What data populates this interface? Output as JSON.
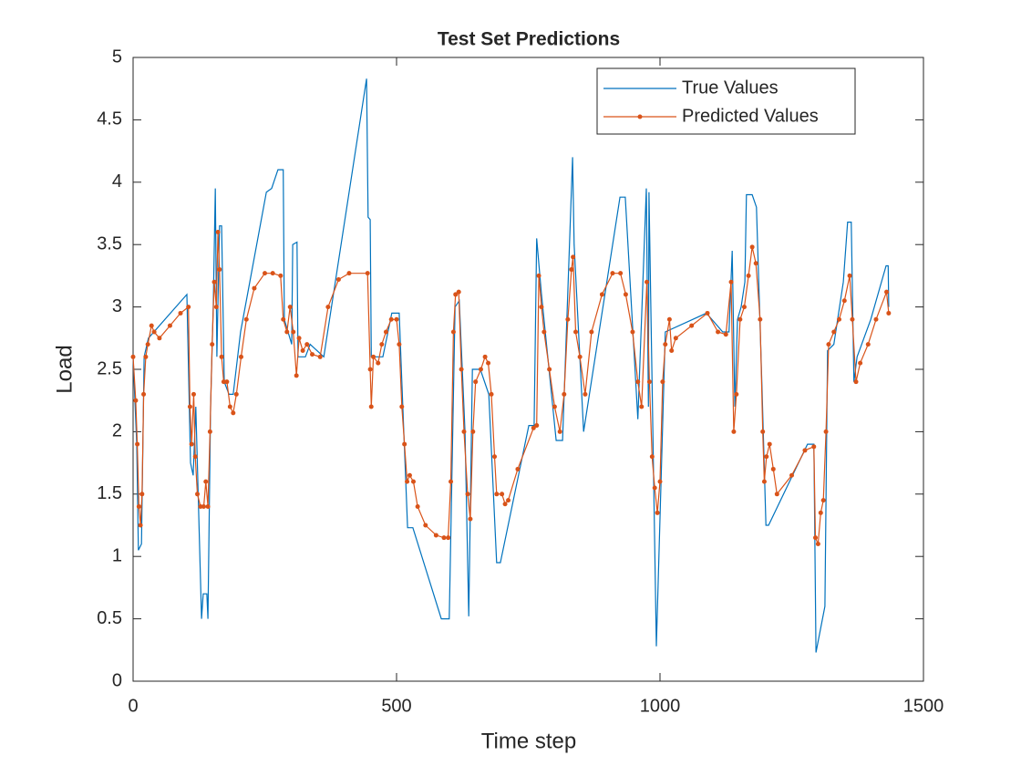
{
  "chart_data": {
    "type": "line",
    "title": "Test Set Predictions",
    "x_label": "Time step",
    "y_label": "Load",
    "xlim": [
      0,
      1500
    ],
    "xticks": [
      0,
      500,
      1000,
      1500
    ],
    "ylim": [
      0,
      5
    ],
    "yticks": [
      0,
      0.5,
      1,
      1.5,
      2,
      2.5,
      3,
      3.5,
      4,
      4.5,
      5
    ],
    "legend": "northeast",
    "series": [
      {
        "name": "True Values",
        "color": "#0072bd",
        "marker": "none",
        "x": [
          0,
          7,
          10,
          16,
          21,
          29,
          102,
          109,
          114,
          119,
          130,
          133,
          140,
          142,
          147,
          152,
          156,
          159,
          164,
          168,
          173,
          182,
          190,
          204,
          253,
          263,
          275,
          285,
          287,
          301,
          303,
          311,
          313,
          327,
          336,
          362,
          443,
          446,
          450,
          452,
          474,
          491,
          505,
          510,
          521,
          531,
          585,
          600,
          611,
          619,
          630,
          637,
          644,
          659,
          675,
          690,
          697,
          751,
          761,
          766,
          775,
          803,
          815,
          834,
          837,
          855,
          924,
          934,
          958,
          974,
          978,
          979,
          993,
          1010,
          1062,
          1088,
          1119,
          1131,
          1137,
          1142,
          1147,
          1154,
          1161,
          1164,
          1175,
          1183,
          1194,
          1201,
          1206,
          1280,
          1292,
          1296,
          1313,
          1318,
          1330,
          1348,
          1356,
          1363,
          1368,
          1374,
          1400,
          1429,
          1433,
          1434
        ],
        "values": [
          2.6,
          1.9,
          1.05,
          1.1,
          2.6,
          2.75,
          3.1,
          1.75,
          1.65,
          2.2,
          0.5,
          0.7,
          0.7,
          0.5,
          2.2,
          3.0,
          3.95,
          2.6,
          3.65,
          3.65,
          2.4,
          2.3,
          2.3,
          2.8,
          3.92,
          3.95,
          4.1,
          4.1,
          2.9,
          2.7,
          3.5,
          3.52,
          2.6,
          2.6,
          2.7,
          2.6,
          4.83,
          3.72,
          3.7,
          2.6,
          2.6,
          2.95,
          2.95,
          2.4,
          1.23,
          1.23,
          0.5,
          0.5,
          3.0,
          3.05,
          2.0,
          0.52,
          2.5,
          2.5,
          2.3,
          0.95,
          0.95,
          2.05,
          2.05,
          3.55,
          3.1,
          1.93,
          1.93,
          4.2,
          3.5,
          2.0,
          3.88,
          3.88,
          2.1,
          3.95,
          2.2,
          3.92,
          0.28,
          2.8,
          2.9,
          2.95,
          2.8,
          2.8,
          3.45,
          2.2,
          2.9,
          3.0,
          3.2,
          3.9,
          3.9,
          3.8,
          2.3,
          1.25,
          1.25,
          1.9,
          1.9,
          0.23,
          0.6,
          2.65,
          2.7,
          3.2,
          3.68,
          3.68,
          2.4,
          2.6,
          2.9,
          3.33,
          3.33,
          3.0
        ]
      },
      {
        "name": "Predicted Values",
        "color": "#d95319",
        "marker": "dot",
        "x": [
          0,
          5,
          8,
          11,
          14,
          17,
          20,
          24,
          28,
          35,
          40,
          50,
          70,
          90,
          105,
          108,
          111,
          115,
          118,
          122,
          128,
          134,
          138,
          142,
          146,
          150,
          154,
          158,
          161,
          164,
          168,
          172,
          178,
          184,
          190,
          196,
          205,
          215,
          230,
          250,
          265,
          280,
          285,
          292,
          298,
          304,
          310,
          315,
          322,
          330,
          340,
          355,
          370,
          390,
          410,
          445,
          450,
          452,
          456,
          465,
          472,
          480,
          490,
          500,
          505,
          510,
          515,
          520,
          525,
          532,
          540,
          555,
          575,
          590,
          598,
          603,
          608,
          612,
          618,
          623,
          628,
          635,
          640,
          645,
          650,
          660,
          668,
          674,
          680,
          686,
          690,
          700,
          706,
          712,
          730,
          760,
          766,
          770,
          775,
          780,
          790,
          800,
          810,
          818,
          825,
          832,
          835,
          840,
          848,
          858,
          870,
          890,
          910,
          925,
          935,
          948,
          958,
          965,
          975,
          980,
          985,
          990,
          995,
          1000,
          1005,
          1010,
          1018,
          1022,
          1030,
          1060,
          1090,
          1110,
          1125,
          1135,
          1140,
          1145,
          1152,
          1160,
          1168,
          1175,
          1182,
          1190,
          1195,
          1198,
          1202,
          1208,
          1215,
          1222,
          1250,
          1275,
          1292,
          1295,
          1300,
          1305,
          1310,
          1315,
          1320,
          1330,
          1340,
          1350,
          1360,
          1365,
          1372,
          1380,
          1395,
          1410,
          1430,
          1434
        ],
        "values": [
          2.6,
          2.25,
          1.9,
          1.4,
          1.25,
          1.5,
          2.3,
          2.6,
          2.7,
          2.85,
          2.8,
          2.75,
          2.85,
          2.95,
          3.0,
          2.2,
          1.9,
          2.3,
          1.8,
          1.5,
          1.4,
          1.4,
          1.6,
          1.4,
          2.0,
          2.7,
          3.2,
          3.0,
          3.6,
          3.3,
          2.6,
          2.4,
          2.4,
          2.2,
          2.15,
          2.3,
          2.6,
          2.9,
          3.15,
          3.27,
          3.27,
          3.25,
          2.9,
          2.8,
          3.0,
          2.8,
          2.45,
          2.75,
          2.65,
          2.7,
          2.62,
          2.6,
          3.0,
          3.22,
          3.27,
          3.27,
          2.5,
          2.2,
          2.6,
          2.55,
          2.7,
          2.8,
          2.9,
          2.9,
          2.7,
          2.2,
          1.9,
          1.6,
          1.65,
          1.6,
          1.4,
          1.25,
          1.17,
          1.15,
          1.15,
          1.6,
          2.8,
          3.1,
          3.12,
          2.5,
          2.0,
          1.5,
          1.3,
          2.0,
          2.4,
          2.5,
          2.6,
          2.55,
          2.3,
          1.8,
          1.5,
          1.5,
          1.42,
          1.45,
          1.7,
          2.03,
          2.05,
          3.25,
          3.0,
          2.8,
          2.5,
          2.2,
          2.0,
          2.3,
          2.9,
          3.3,
          3.4,
          2.8,
          2.6,
          2.3,
          2.8,
          3.1,
          3.27,
          3.27,
          3.1,
          2.8,
          2.4,
          2.2,
          3.2,
          2.4,
          1.8,
          1.55,
          1.35,
          1.6,
          2.4,
          2.7,
          2.9,
          2.65,
          2.75,
          2.85,
          2.95,
          2.8,
          2.78,
          3.2,
          2.0,
          2.3,
          2.9,
          3.0,
          3.25,
          3.48,
          3.35,
          2.9,
          2.0,
          1.6,
          1.8,
          1.9,
          1.7,
          1.5,
          1.65,
          1.85,
          1.88,
          1.15,
          1.1,
          1.35,
          1.45,
          2.0,
          2.7,
          2.8,
          2.9,
          3.05,
          3.25,
          2.9,
          2.4,
          2.55,
          2.7,
          2.9,
          3.12,
          2.95
        ]
      }
    ]
  }
}
